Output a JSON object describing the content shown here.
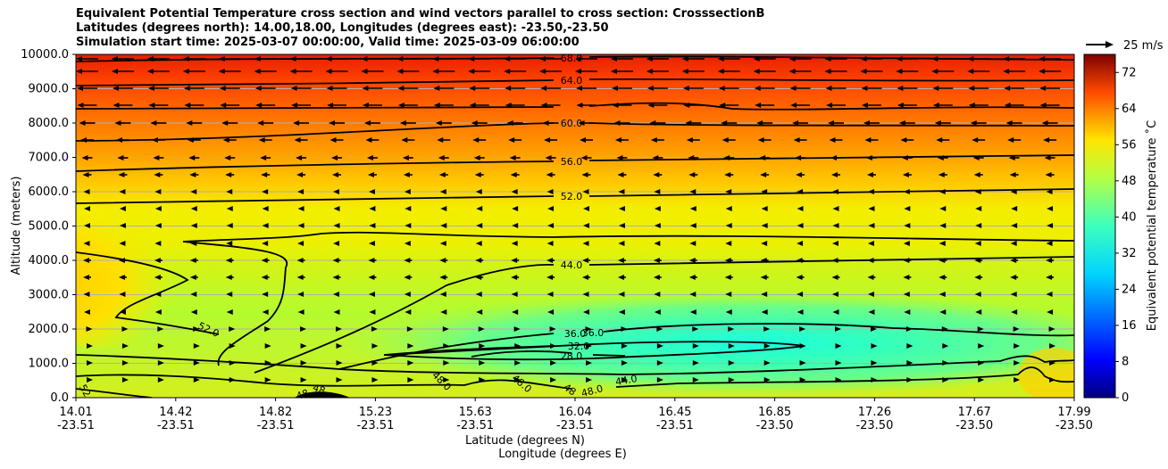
{
  "chart_data": {
    "type": "heatmap",
    "title": [
      "Equivalent Potential Temperature cross section and wind vectors parallel to cross section: CrosssectionB",
      "Latitudes (degrees north): 14.00,18.00, Longitudes (degrees east): -23.50,-23.50",
      "Simulation start time: 2025-03-07 00:00:00, Valid time: 2025-03-09 06:00:00"
    ],
    "xlabel": "Latitude (degrees N)",
    "xlabel2": "Longitude (degrees E)",
    "ylabel": "Altitude (meters)",
    "ylim": [
      0,
      10000
    ],
    "y_ticks": [
      "0.0",
      "1000.0",
      "2000.0",
      "3000.0",
      "4000.0",
      "5000.0",
      "6000.0",
      "7000.0",
      "8000.0",
      "9000.0",
      "10000.0"
    ],
    "x_ticks": [
      {
        "lat": "14.01",
        "lon": "-23.51"
      },
      {
        "lat": "14.42",
        "lon": "-23.51"
      },
      {
        "lat": "14.82",
        "lon": "-23.51"
      },
      {
        "lat": "15.23",
        "lon": "-23.51"
      },
      {
        "lat": "15.63",
        "lon": "-23.51"
      },
      {
        "lat": "16.04",
        "lon": "-23.51"
      },
      {
        "lat": "16.45",
        "lon": "-23.51"
      },
      {
        "lat": "16.85",
        "lon": "-23.50"
      },
      {
        "lat": "17.26",
        "lon": "-23.50"
      },
      {
        "lat": "17.67",
        "lon": "-23.50"
      },
      {
        "lat": "17.99",
        "lon": "-23.50"
      }
    ],
    "colorbar": {
      "label": "Equivalent potential temperature $^\\circ$C",
      "label_text": "Equivalent potential temperature ˚C",
      "range": [
        0,
        76
      ],
      "ticks": [
        "0",
        "8",
        "16",
        "24",
        "32",
        "40",
        "48",
        "56",
        "64",
        "72"
      ],
      "colormap": "jet"
    },
    "quiver_key": "25 m/s",
    "contour_labels": [
      "68.0",
      "64.0",
      "60.0",
      "56.0",
      "52.0",
      "44.0",
      "36.0",
      "36.0",
      "32.0",
      "28.0",
      "52.0",
      "52",
      "48",
      "48",
      "48.0",
      "48.0",
      "48",
      "48.0",
      "44.0"
    ]
  }
}
